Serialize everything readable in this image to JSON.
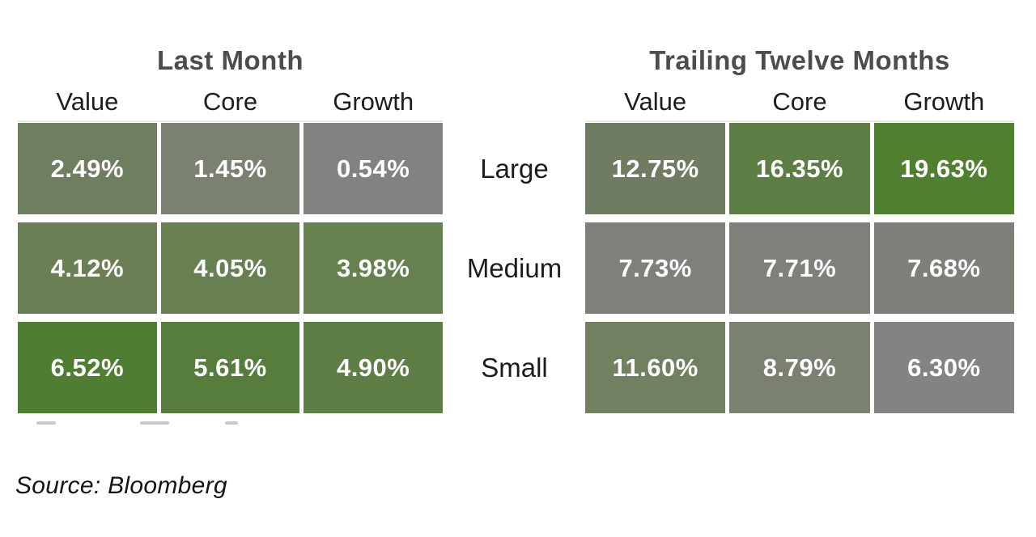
{
  "source_note": "Source: Bloomberg",
  "row_labels": [
    "Large",
    "Medium",
    "Small"
  ],
  "chart_data": {
    "type": "heatmap",
    "layout": "two style-box grids (3x3) sharing center row labels, greener = higher return, gray = lower",
    "color_scale": {
      "low": "#838381",
      "high": "#4F8030"
    },
    "tables": [
      {
        "title": "Last Month",
        "columns": [
          "Value",
          "Core",
          "Growth"
        ],
        "rows": [
          "Large",
          "Medium",
          "Small"
        ],
        "values": [
          [
            2.49,
            1.45,
            0.54
          ],
          [
            4.12,
            4.05,
            3.98
          ],
          [
            6.52,
            5.61,
            4.9
          ]
        ],
        "cells": [
          [
            {
              "label": "2.49%",
              "color": "#6E7F5F"
            },
            {
              "label": "1.45%",
              "color": "#7A8171"
            },
            {
              "label": "0.54%",
              "color": "#828281"
            }
          ],
          [
            {
              "label": "4.12%",
              "color": "#6A7F54"
            },
            {
              "label": "4.05%",
              "color": "#687F51"
            },
            {
              "label": "3.98%",
              "color": "#66804E"
            }
          ],
          [
            {
              "label": "6.52%",
              "color": "#4F7D31"
            },
            {
              "label": "5.61%",
              "color": "#567D3B"
            },
            {
              "label": "4.90%",
              "color": "#5D7E44"
            }
          ]
        ]
      },
      {
        "title": "Trailing Twelve Months",
        "columns": [
          "Value",
          "Core",
          "Growth"
        ],
        "rows": [
          "Large",
          "Medium",
          "Small"
        ],
        "values": [
          [
            12.75,
            16.35,
            19.63
          ],
          [
            7.73,
            7.71,
            7.68
          ],
          [
            11.6,
            8.79,
            6.3
          ]
        ],
        "cells": [
          [
            {
              "label": "12.75%",
              "color": "#6F7C62"
            },
            {
              "label": "16.35%",
              "color": "#5C7E45"
            },
            {
              "label": "19.63%",
              "color": "#4F8030"
            }
          ],
          [
            {
              "label": "7.73%",
              "color": "#7E807A"
            },
            {
              "label": "7.71%",
              "color": "#7E807A"
            },
            {
              "label": "7.68%",
              "color": "#7D7F79"
            }
          ],
          [
            {
              "label": "11.60%",
              "color": "#718060"
            },
            {
              "label": "8.79%",
              "color": "#7B8170"
            },
            {
              "label": "6.30%",
              "color": "#838381"
            }
          ]
        ]
      }
    ]
  }
}
